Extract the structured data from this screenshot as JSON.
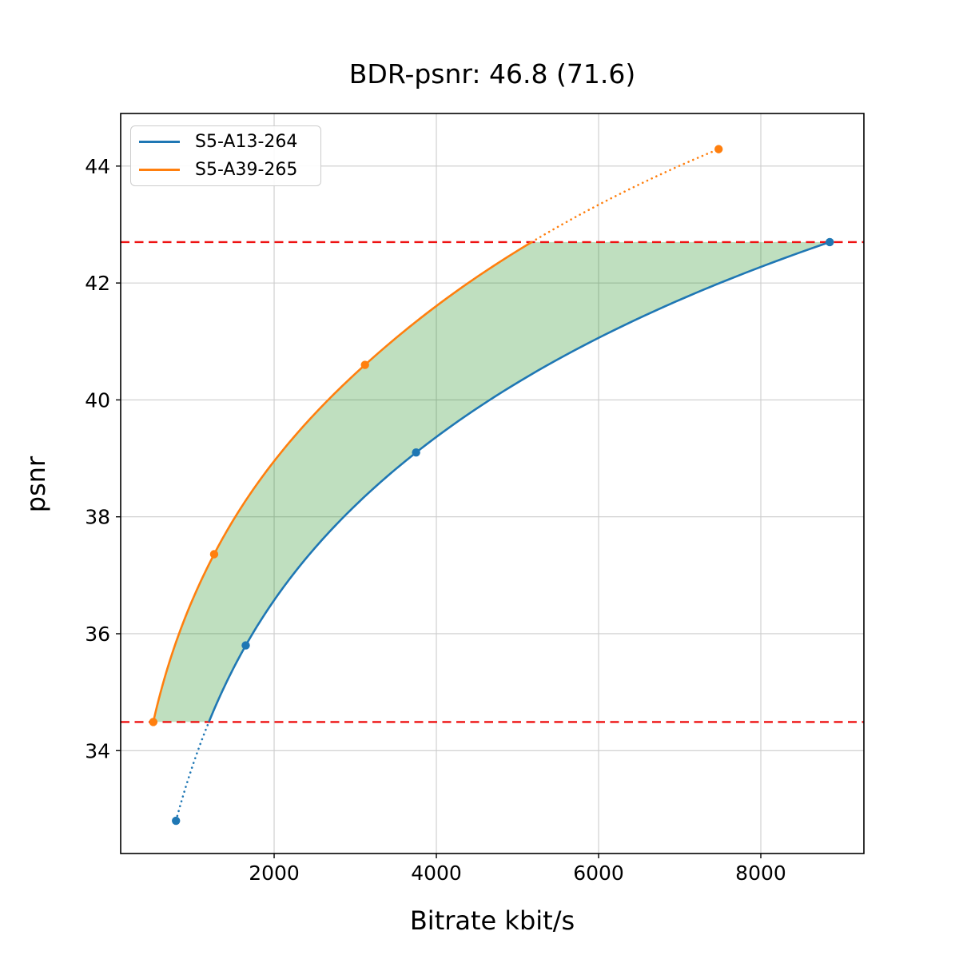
{
  "figure": {
    "title": "BDR-psnr: 46.8 (71.6)",
    "xlabel": "Bitrate kbit/s",
    "ylabel": "psnr"
  },
  "chart_data": {
    "type": "line",
    "title": "BDR-psnr: 46.8 (71.6)",
    "xlabel": "Bitrate kbit/s",
    "ylabel": "psnr",
    "xlim": [
      108,
      9271
    ],
    "ylim": [
      32.24,
      44.9
    ],
    "xticks": [
      2000,
      4000,
      6000,
      8000
    ],
    "yticks": [
      34,
      36,
      38,
      40,
      42,
      44
    ],
    "grid": true,
    "grid_color": "#cccccc",
    "frame_color": "#000000",
    "legend_position": "upper left",
    "interpolation": "smooth in log-bitrate domain, solid inside BD interval, dotted outside",
    "series": [
      {
        "name": "S5-A13-264",
        "color": "#1f77b4",
        "marker": "circle",
        "points": [
          [
            790,
            32.8
          ],
          [
            1650,
            35.8
          ],
          [
            3750,
            39.1
          ],
          [
            8850,
            42.7
          ]
        ]
      },
      {
        "name": "S5-A39-265",
        "color": "#ff7f0e",
        "marker": "circle",
        "points": [
          [
            510,
            34.49
          ],
          [
            1260,
            37.36
          ],
          [
            3120,
            40.6
          ],
          [
            7480,
            44.29
          ]
        ]
      }
    ],
    "bd_interval_lines": {
      "low": 34.49,
      "high": 42.7,
      "color": "#ee1111",
      "style": "dashed"
    },
    "shaded_region": {
      "description": "area between the two rate-distortion curves inside the BD interval",
      "color": "#008000",
      "opacity": 0.25
    }
  }
}
